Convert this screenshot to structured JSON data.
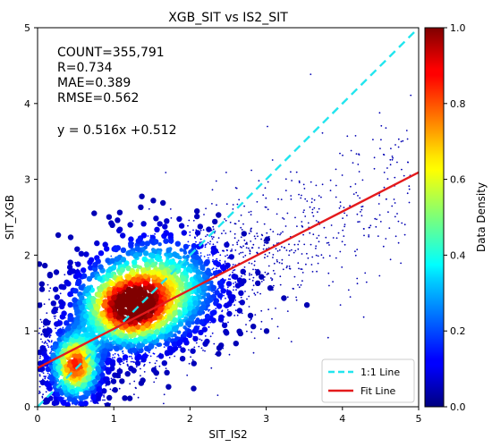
{
  "chart_data": {
    "type": "scatter",
    "title": "XGB_SIT vs IS2_SIT",
    "xlabel": "SIT_IS2",
    "ylabel": "SIT_XGB",
    "xlim": [
      0,
      5
    ],
    "ylim": [
      0,
      5
    ],
    "xticks": [
      "0",
      "1",
      "2",
      "3",
      "4",
      "5"
    ],
    "yticks": [
      "0",
      "1",
      "2",
      "3",
      "4",
      "5"
    ],
    "stats": [
      "COUNT=355,791",
      "R=0.734",
      "MAE=0.389",
      "RMSE=0.562"
    ],
    "equation": "y = 0.516x +0.512",
    "fit": {
      "slope": 0.516,
      "intercept": 0.512,
      "color": "#e41a1c"
    },
    "one_to_one": {
      "slope": 1,
      "intercept": 0,
      "color": "#22e5ee"
    },
    "legend": {
      "position": "bottom-right",
      "items": [
        "1:1 Line",
        "Fit Line"
      ]
    },
    "density": {
      "colormap": "jet",
      "note_values": "density hotspots in data units with relative density",
      "clusters": [
        {
          "x": 1.2,
          "y": 1.3,
          "sx": 0.35,
          "sy": 0.28,
          "peak": 1.0
        },
        {
          "x": 0.5,
          "y": 0.55,
          "sx": 0.18,
          "sy": 0.25,
          "peak": 0.85
        },
        {
          "x": 1.6,
          "y": 1.6,
          "sx": 0.45,
          "sy": 0.35,
          "peak": 0.5
        }
      ]
    },
    "colorbar": {
      "label": "Data Density",
      "min": 0.0,
      "max": 1.0,
      "ticks": [
        "0.0",
        "0.2",
        "0.4",
        "0.6",
        "0.8",
        "1.0"
      ]
    }
  }
}
